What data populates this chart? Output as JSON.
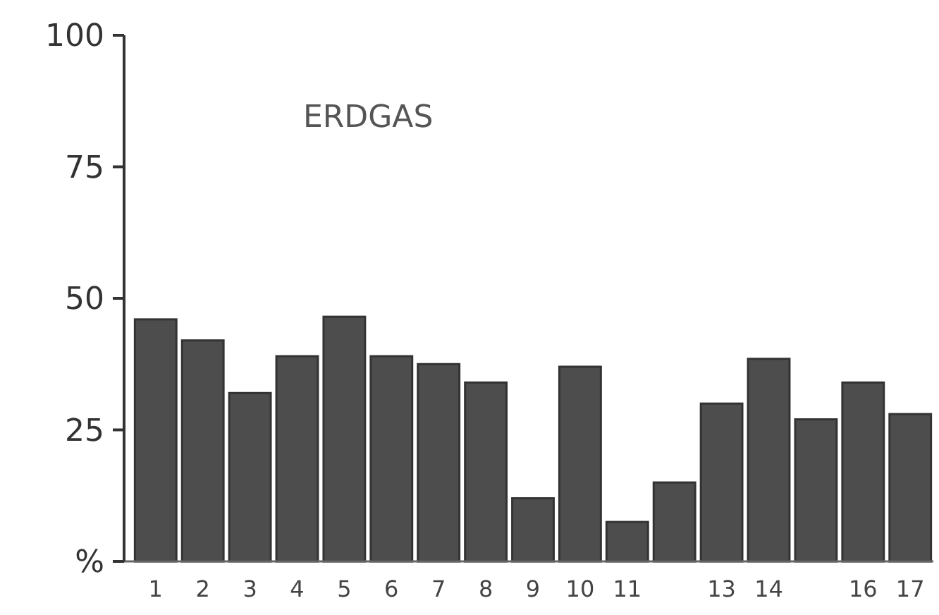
{
  "chart_data": {
    "type": "bar",
    "title": "ERDGAS",
    "categories": [
      "1",
      "2",
      "3",
      "4",
      "5",
      "6",
      "7",
      "8",
      "9",
      "10",
      "11",
      null,
      "13",
      "14",
      null,
      "16",
      "17"
    ],
    "values": [
      46,
      42,
      32,
      39,
      46.5,
      39,
      37.5,
      34,
      12,
      37,
      7.5,
      15,
      30,
      38.5,
      27,
      34,
      28
    ],
    "color": "#4d4d4d",
    "ylim": [
      0,
      100
    ],
    "yticks": [
      {
        "value": 0,
        "label": "%"
      },
      25,
      50,
      75,
      100
    ]
  }
}
